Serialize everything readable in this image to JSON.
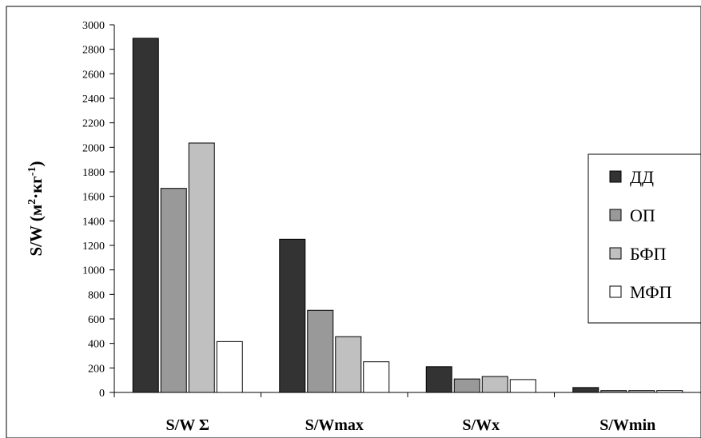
{
  "chart_data": {
    "type": "bar",
    "categories": [
      "S/W Σ",
      "S/Wmax",
      "S/Wx",
      "S/Wmin"
    ],
    "series": [
      {
        "name": "ДД",
        "color": "#333333",
        "values": [
          2890,
          1250,
          210,
          40
        ]
      },
      {
        "name": "ОП",
        "color": "#999999",
        "values": [
          1665,
          670,
          110,
          15
        ]
      },
      {
        "name": "БФП",
        "color": "#c0c0c0",
        "values": [
          2035,
          455,
          130,
          15
        ]
      },
      {
        "name": "МФП",
        "color": "#ffffff",
        "values": [
          415,
          250,
          105,
          15
        ]
      }
    ],
    "ylabel": {
      "base": "S/W (м",
      "exp1": "2",
      "mid": "·кг",
      "exp2": "-1",
      "tail": ")"
    },
    "ylim": [
      0,
      3000
    ],
    "yticks": [
      "0",
      "200",
      "400",
      "600",
      "800",
      "1000",
      "1200",
      "1400",
      "1600",
      "1800",
      "2000",
      "2200",
      "2400",
      "2600",
      "2800",
      "3000"
    ],
    "grid": false,
    "legend_position": "right"
  }
}
